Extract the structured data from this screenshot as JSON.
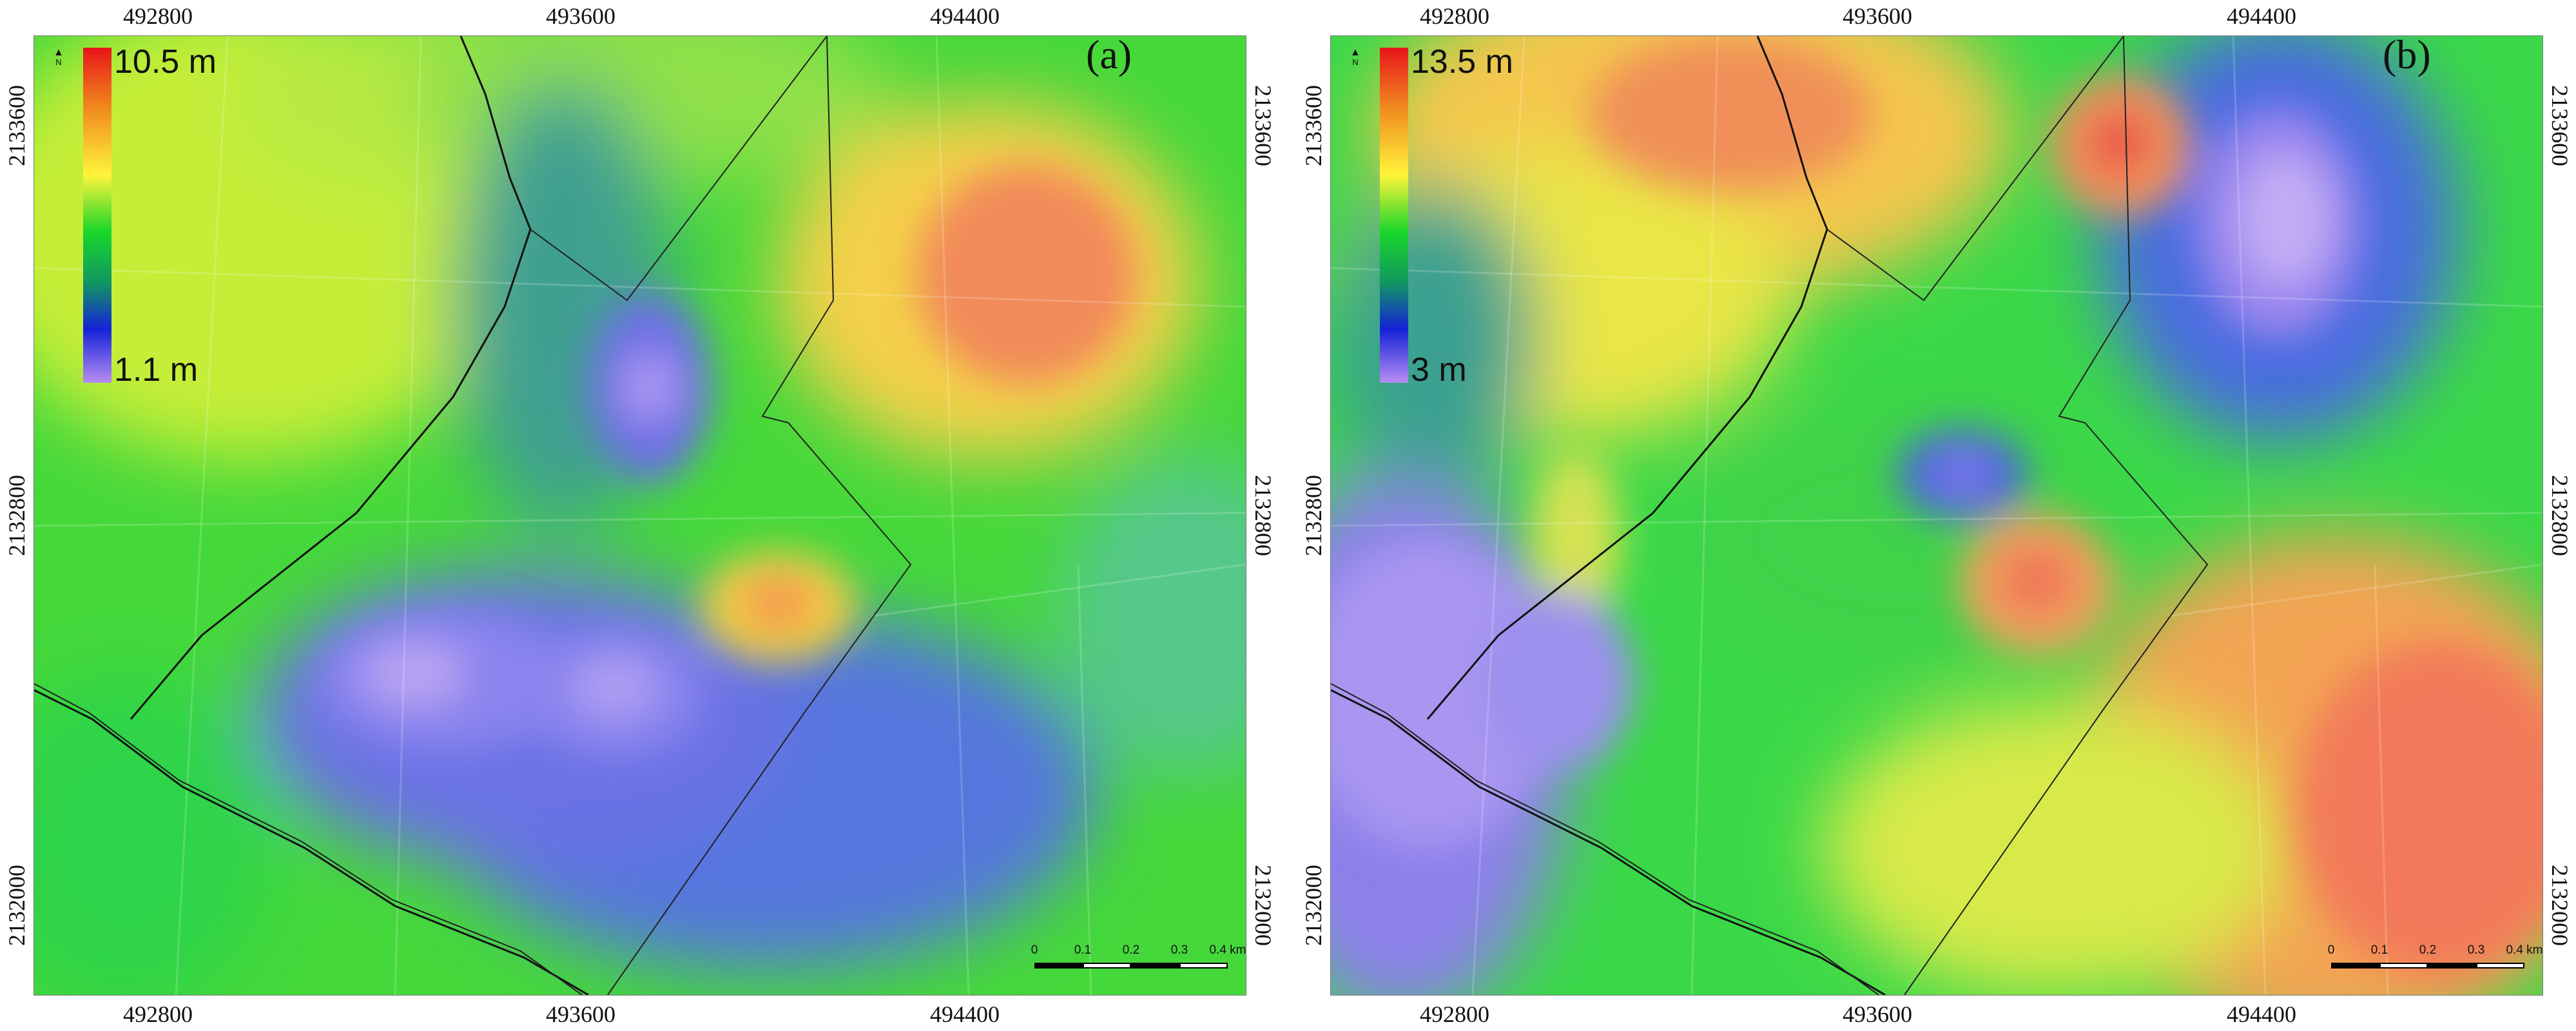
{
  "x_ticks": [
    "492800",
    "493600",
    "494400"
  ],
  "y_ticks": [
    "2133600",
    "2132800",
    "2132000"
  ],
  "scale": {
    "labels": [
      "0",
      "0.1",
      "0.2",
      "0.3",
      "0.4 km"
    ]
  },
  "north_label": "N",
  "panels": [
    {
      "id": "a",
      "label": "(a)",
      "legend_max": "10.5 m",
      "legend_min": "1.1 m"
    },
    {
      "id": "b",
      "label": "(b)",
      "legend_max": "13.5 m",
      "legend_min": "3 m"
    }
  ],
  "colors": {
    "high": "#e8141a",
    "mid": "#fff43a",
    "green": "#19d62a",
    "low": "#1522d8",
    "lowest": "#b68cf2"
  }
}
